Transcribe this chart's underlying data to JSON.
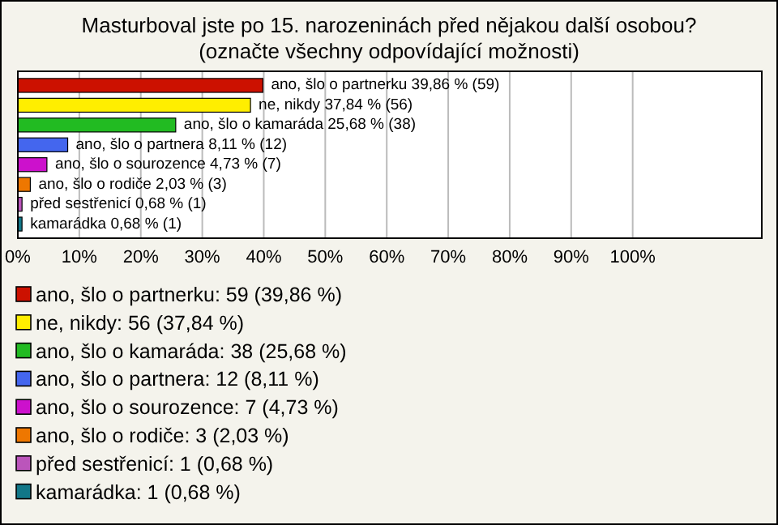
{
  "chart_data": {
    "type": "bar",
    "orientation": "horizontal",
    "title": "Masturboval jste po 15. narozeninách před nějakou další osobou?",
    "subtitle": "(označte všechny odpovídající možnosti)",
    "categories": [
      null,
      null,
      null,
      null,
      null,
      null,
      null,
      null
    ],
    "series": [
      {
        "name": "ano, šlo o partnerku: 59 (39,86 %)",
        "color": "#cc1100",
        "values": [
          39.86,
          null,
          null,
          null,
          null,
          null,
          null,
          null
        ],
        "value_labels": [
          "ano, šlo o partnerku 39,86 % (59)",
          null,
          null,
          null,
          null,
          null,
          null,
          null
        ]
      },
      {
        "name": "ne, nikdy: 56 (37,84 %)",
        "color": "#ffee00",
        "values": [
          null,
          37.84,
          null,
          null,
          null,
          null,
          null,
          null
        ],
        "value_labels": [
          null,
          "ne, nikdy 37,84 % (56)",
          null,
          null,
          null,
          null,
          null,
          null
        ]
      },
      {
        "name": "ano, šlo o kamaráda: 38 (25,68 %)",
        "color": "#22bb22",
        "values": [
          null,
          null,
          25.68,
          null,
          null,
          null,
          null,
          null
        ],
        "value_labels": [
          null,
          null,
          "ano, šlo o kamaráda 25,68 % (38)",
          null,
          null,
          null,
          null,
          null
        ]
      },
      {
        "name": "ano, šlo o partnera: 12 (8,11 %)",
        "color": "#4466ee",
        "values": [
          null,
          null,
          null,
          8.11,
          null,
          null,
          null,
          null
        ],
        "value_labels": [
          null,
          null,
          null,
          "ano, šlo o partnera 8,11 % (12)",
          null,
          null,
          null,
          null
        ]
      },
      {
        "name": "ano, šlo o sourozence: 7 (4,73 %)",
        "color": "#cc11cc",
        "values": [
          null,
          null,
          null,
          null,
          4.73,
          null,
          null,
          null
        ],
        "value_labels": [
          null,
          null,
          null,
          null,
          "ano, šlo o sourozence 4,73 % (7)",
          null,
          null,
          null
        ]
      },
      {
        "name": "ano, šlo o rodiče: 3 (2,03 %)",
        "color": "#ee7700",
        "values": [
          null,
          null,
          null,
          null,
          null,
          2.03,
          null,
          null
        ],
        "value_labels": [
          null,
          null,
          null,
          null,
          null,
          "ano, šlo o rodiče 2,03 % (3)",
          null,
          null
        ]
      },
      {
        "name": "před sestřenicí: 1 (0,68 %)",
        "color": "#bb55bb",
        "values": [
          null,
          null,
          null,
          null,
          null,
          null,
          0.68,
          null
        ],
        "value_labels": [
          null,
          null,
          null,
          null,
          null,
          null,
          "před sestřenicí 0,68 % (1)",
          null
        ]
      },
      {
        "name": "kamarádka: 1 (0,68 %)",
        "color": "#117788",
        "values": [
          null,
          null,
          null,
          null,
          null,
          null,
          null,
          0.68
        ],
        "value_labels": [
          null,
          null,
          null,
          null,
          null,
          null,
          null,
          "kamarádka 0,68 % (1)"
        ]
      }
    ],
    "xlim": [
      0,
      121
    ],
    "xticks": [
      {
        "value": 0,
        "label": "0%"
      },
      {
        "value": 10,
        "label": "10%"
      },
      {
        "value": 20,
        "label": "20%"
      },
      {
        "value": 30,
        "label": "30%"
      },
      {
        "value": 40,
        "label": "40%"
      },
      {
        "value": 50,
        "label": "50%"
      },
      {
        "value": 60,
        "label": "60%"
      },
      {
        "value": 70,
        "label": "70%"
      },
      {
        "value": 80,
        "label": "80%"
      },
      {
        "value": 90,
        "label": "90%"
      },
      {
        "value": 100,
        "label": "100%"
      }
    ],
    "grid": "x",
    "legend": "bottom"
  }
}
